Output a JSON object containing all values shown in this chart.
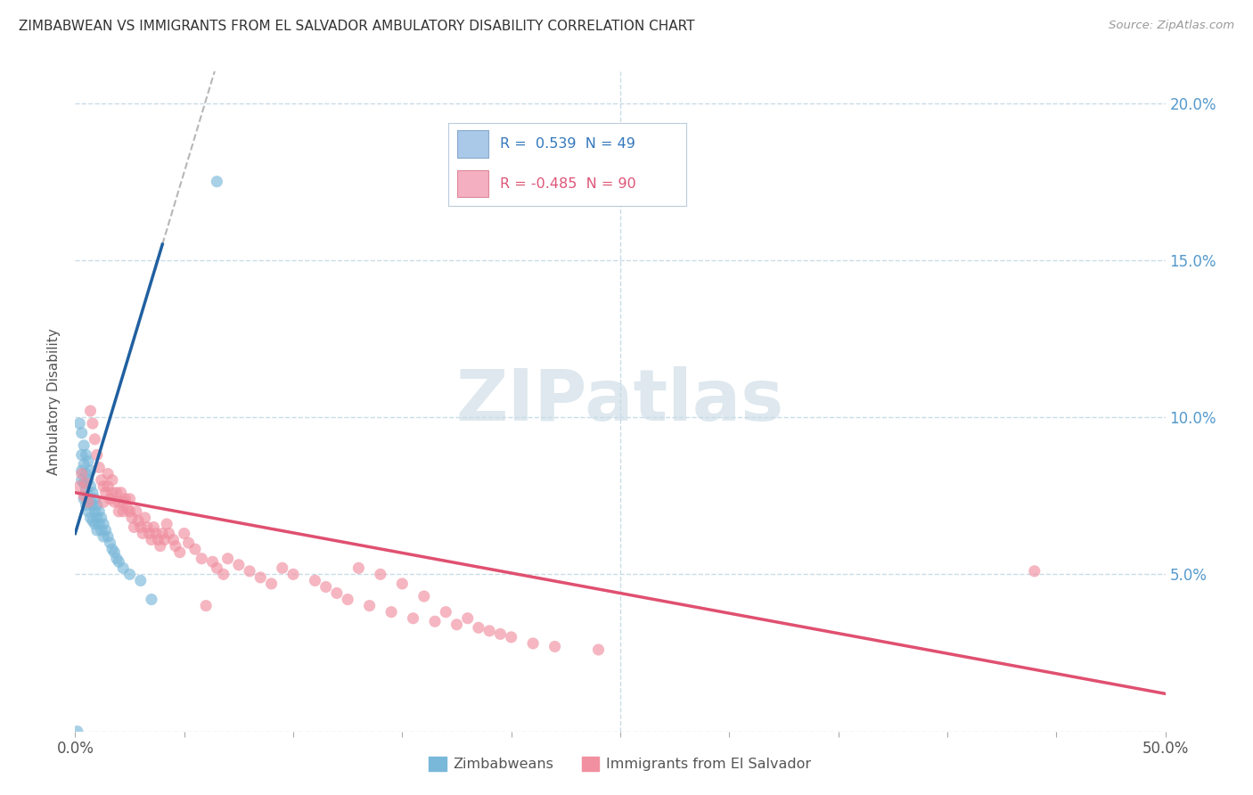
{
  "title": "ZIMBABWEAN VS IMMIGRANTS FROM EL SALVADOR AMBULATORY DISABILITY CORRELATION CHART",
  "source": "Source: ZipAtlas.com",
  "ylabel": "Ambulatory Disability",
  "xlim": [
    0,
    0.5
  ],
  "ylim": [
    0,
    0.21
  ],
  "blue_color": "#7ab8d9",
  "pink_color": "#f090a0",
  "blue_line_color": "#2060a0",
  "pink_line_color": "#e05070",
  "grid_color": "#c8dce8",
  "background_color": "#ffffff",
  "watermark_color": "#d0dfe8",
  "zimbabwean_points": [
    [
      0.001,
      0.0
    ],
    [
      0.002,
      0.098
    ],
    [
      0.003,
      0.095
    ],
    [
      0.003,
      0.088
    ],
    [
      0.003,
      0.083
    ],
    [
      0.003,
      0.08
    ],
    [
      0.004,
      0.091
    ],
    [
      0.004,
      0.085
    ],
    [
      0.004,
      0.079
    ],
    [
      0.004,
      0.074
    ],
    [
      0.005,
      0.088
    ],
    [
      0.005,
      0.082
    ],
    [
      0.005,
      0.077
    ],
    [
      0.005,
      0.072
    ],
    [
      0.006,
      0.086
    ],
    [
      0.006,
      0.08
    ],
    [
      0.006,
      0.075
    ],
    [
      0.006,
      0.07
    ],
    [
      0.007,
      0.083
    ],
    [
      0.007,
      0.078
    ],
    [
      0.007,
      0.073
    ],
    [
      0.007,
      0.068
    ],
    [
      0.008,
      0.076
    ],
    [
      0.008,
      0.072
    ],
    [
      0.008,
      0.067
    ],
    [
      0.009,
      0.074
    ],
    [
      0.009,
      0.07
    ],
    [
      0.009,
      0.066
    ],
    [
      0.01,
      0.072
    ],
    [
      0.01,
      0.068
    ],
    [
      0.01,
      0.064
    ],
    [
      0.011,
      0.07
    ],
    [
      0.011,
      0.066
    ],
    [
      0.012,
      0.068
    ],
    [
      0.012,
      0.064
    ],
    [
      0.013,
      0.066
    ],
    [
      0.013,
      0.062
    ],
    [
      0.014,
      0.064
    ],
    [
      0.015,
      0.062
    ],
    [
      0.016,
      0.06
    ],
    [
      0.017,
      0.058
    ],
    [
      0.018,
      0.057
    ],
    [
      0.019,
      0.055
    ],
    [
      0.02,
      0.054
    ],
    [
      0.022,
      0.052
    ],
    [
      0.025,
      0.05
    ],
    [
      0.03,
      0.048
    ],
    [
      0.035,
      0.042
    ],
    [
      0.065,
      0.175
    ]
  ],
  "salvador_points": [
    [
      0.002,
      0.078
    ],
    [
      0.003,
      0.082
    ],
    [
      0.004,
      0.075
    ],
    [
      0.005,
      0.079
    ],
    [
      0.006,
      0.073
    ],
    [
      0.007,
      0.102
    ],
    [
      0.008,
      0.098
    ],
    [
      0.009,
      0.093
    ],
    [
      0.01,
      0.088
    ],
    [
      0.011,
      0.084
    ],
    [
      0.012,
      0.08
    ],
    [
      0.013,
      0.078
    ],
    [
      0.013,
      0.073
    ],
    [
      0.014,
      0.076
    ],
    [
      0.015,
      0.082
    ],
    [
      0.015,
      0.078
    ],
    [
      0.016,
      0.074
    ],
    [
      0.017,
      0.08
    ],
    [
      0.017,
      0.076
    ],
    [
      0.018,
      0.073
    ],
    [
      0.019,
      0.076
    ],
    [
      0.02,
      0.073
    ],
    [
      0.02,
      0.07
    ],
    [
      0.021,
      0.076
    ],
    [
      0.022,
      0.073
    ],
    [
      0.022,
      0.07
    ],
    [
      0.023,
      0.074
    ],
    [
      0.024,
      0.071
    ],
    [
      0.025,
      0.074
    ],
    [
      0.025,
      0.07
    ],
    [
      0.026,
      0.068
    ],
    [
      0.027,
      0.065
    ],
    [
      0.028,
      0.07
    ],
    [
      0.029,
      0.067
    ],
    [
      0.03,
      0.065
    ],
    [
      0.031,
      0.063
    ],
    [
      0.032,
      0.068
    ],
    [
      0.033,
      0.065
    ],
    [
      0.034,
      0.063
    ],
    [
      0.035,
      0.061
    ],
    [
      0.036,
      0.065
    ],
    [
      0.037,
      0.063
    ],
    [
      0.038,
      0.061
    ],
    [
      0.039,
      0.059
    ],
    [
      0.04,
      0.063
    ],
    [
      0.041,
      0.061
    ],
    [
      0.042,
      0.066
    ],
    [
      0.043,
      0.063
    ],
    [
      0.045,
      0.061
    ],
    [
      0.046,
      0.059
    ],
    [
      0.048,
      0.057
    ],
    [
      0.05,
      0.063
    ],
    [
      0.052,
      0.06
    ],
    [
      0.055,
      0.058
    ],
    [
      0.058,
      0.055
    ],
    [
      0.06,
      0.04
    ],
    [
      0.063,
      0.054
    ],
    [
      0.065,
      0.052
    ],
    [
      0.068,
      0.05
    ],
    [
      0.07,
      0.055
    ],
    [
      0.075,
      0.053
    ],
    [
      0.08,
      0.051
    ],
    [
      0.085,
      0.049
    ],
    [
      0.09,
      0.047
    ],
    [
      0.095,
      0.052
    ],
    [
      0.1,
      0.05
    ],
    [
      0.11,
      0.048
    ],
    [
      0.115,
      0.046
    ],
    [
      0.12,
      0.044
    ],
    [
      0.125,
      0.042
    ],
    [
      0.13,
      0.052
    ],
    [
      0.135,
      0.04
    ],
    [
      0.14,
      0.05
    ],
    [
      0.145,
      0.038
    ],
    [
      0.15,
      0.047
    ],
    [
      0.155,
      0.036
    ],
    [
      0.16,
      0.043
    ],
    [
      0.165,
      0.035
    ],
    [
      0.17,
      0.038
    ],
    [
      0.175,
      0.034
    ],
    [
      0.18,
      0.036
    ],
    [
      0.185,
      0.033
    ],
    [
      0.19,
      0.032
    ],
    [
      0.195,
      0.031
    ],
    [
      0.2,
      0.03
    ],
    [
      0.21,
      0.028
    ],
    [
      0.22,
      0.027
    ],
    [
      0.24,
      0.026
    ],
    [
      0.44,
      0.051
    ]
  ],
  "zim_line_x0": 0.0,
  "zim_line_y0": 0.063,
  "zim_line_x1": 0.04,
  "zim_line_y1": 0.155,
  "sal_line_x0": 0.0,
  "sal_line_y0": 0.076,
  "sal_line_x1": 0.5,
  "sal_line_y1": 0.012
}
